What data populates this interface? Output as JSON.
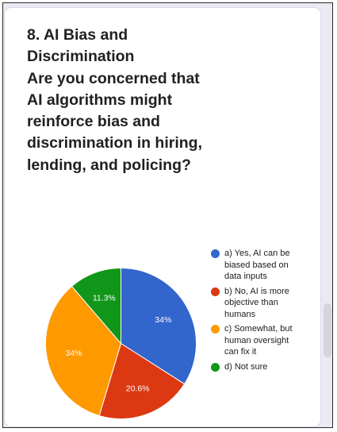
{
  "question": {
    "title": "8. AI Bias and Discrimination",
    "text": "Are you concerned that AI algorithms might reinforce bias and discrimination in hiring, lending, and policing?"
  },
  "chart_data": {
    "type": "pie",
    "title": "",
    "start_angle_deg": 90,
    "direction": "counterclockwise",
    "slices": [
      {
        "label": "a) Yes, AI can be biased based on data inputs",
        "value": 34,
        "value_label": "34%",
        "color": "#3366cc"
      },
      {
        "label": "b) No, AI is more objective than humans",
        "value": 20.6,
        "value_label": "20.6%",
        "color": "#dc3912"
      },
      {
        "label": "c) Somewhat, but human oversight can fix it",
        "value": 34,
        "value_label": "34%",
        "color": "#ff9900"
      },
      {
        "label": "d) Not sure",
        "value": 11.3,
        "value_label": "11.3%",
        "color": "#109618"
      }
    ],
    "legend_position": "right",
    "label_color": "#ffffff"
  }
}
